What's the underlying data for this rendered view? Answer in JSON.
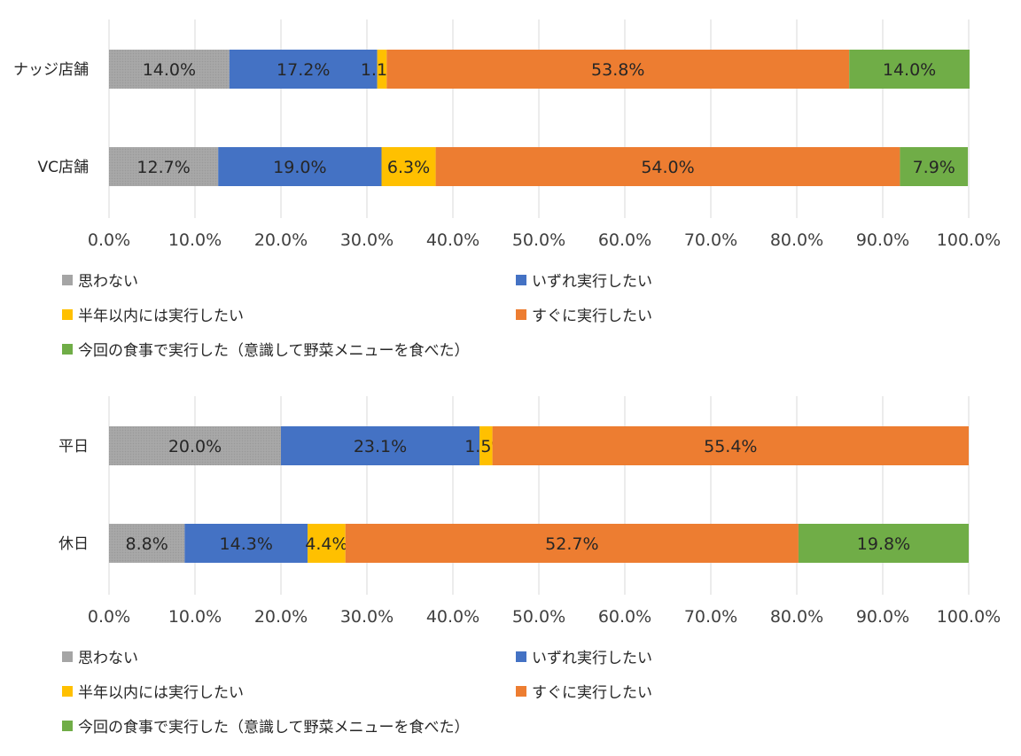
{
  "colors": {
    "not_think": "#a5a5a5",
    "someday": "#4472c4",
    "half_year": "#ffc000",
    "soon": "#ed7d31",
    "did": "#70ad47",
    "grid": "#d9d9d9",
    "text": "#404040"
  },
  "chart_data": [
    {
      "type": "bar",
      "orientation": "horizontal",
      "stacked": true,
      "categories": [
        "ナッジ店舗",
        "VC店舗"
      ],
      "xlim": [
        0,
        100
      ],
      "ticks": [
        "0.0%",
        "10.0%",
        "20.0%",
        "30.0%",
        "40.0%",
        "50.0%",
        "60.0%",
        "70.0%",
        "80.0%",
        "90.0%",
        "100.0%"
      ],
      "grid": true,
      "legend_position": "bottom",
      "series": [
        {
          "name": "思わない",
          "color_key": "not_think",
          "values": [
            14.0,
            12.7
          ],
          "labels": [
            "14.0%",
            "12.7%"
          ]
        },
        {
          "name": "いずれ実行したい",
          "color_key": "someday",
          "values": [
            17.2,
            19.0
          ],
          "labels": [
            "17.2%",
            "19.0%"
          ]
        },
        {
          "name": "半年以内には実行したい",
          "color_key": "half_year",
          "values": [
            1.1,
            6.3
          ],
          "labels": [
            "1.1%",
            "6.3%"
          ]
        },
        {
          "name": "すぐに実行したい",
          "color_key": "soon",
          "values": [
            53.8,
            54.0
          ],
          "labels": [
            "53.8%",
            "54.0%"
          ]
        },
        {
          "name": "今回の食事で実行した（意識して野菜メニューを食べた）",
          "color_key": "did",
          "values": [
            14.0,
            7.9
          ],
          "labels": [
            "14.0%",
            "7.9%"
          ]
        }
      ]
    },
    {
      "type": "bar",
      "orientation": "horizontal",
      "stacked": true,
      "categories": [
        "平日",
        "休日"
      ],
      "xlim": [
        0,
        100
      ],
      "ticks": [
        "0.0%",
        "10.0%",
        "20.0%",
        "30.0%",
        "40.0%",
        "50.0%",
        "60.0%",
        "70.0%",
        "80.0%",
        "90.0%",
        "100.0%"
      ],
      "grid": true,
      "legend_position": "bottom",
      "series": [
        {
          "name": "思わない",
          "color_key": "not_think",
          "values": [
            20.0,
            8.8
          ],
          "labels": [
            "20.0%",
            "8.8%"
          ]
        },
        {
          "name": "いずれ実行したい",
          "color_key": "someday",
          "values": [
            23.1,
            14.3
          ],
          "labels": [
            "23.1%",
            "14.3%"
          ]
        },
        {
          "name": "半年以内には実行したい",
          "color_key": "half_year",
          "values": [
            1.5,
            4.4
          ],
          "labels": [
            "1.5%",
            "4.4%"
          ]
        },
        {
          "name": "すぐに実行したい",
          "color_key": "soon",
          "values": [
            55.4,
            52.7
          ],
          "labels": [
            "55.4%",
            "52.7%"
          ]
        },
        {
          "name": "今回の食事で実行した（意識して野菜メニューを食べた）",
          "color_key": "did",
          "values": [
            0,
            19.8
          ],
          "labels": [
            "",
            "19.8%"
          ]
        }
      ]
    }
  ]
}
